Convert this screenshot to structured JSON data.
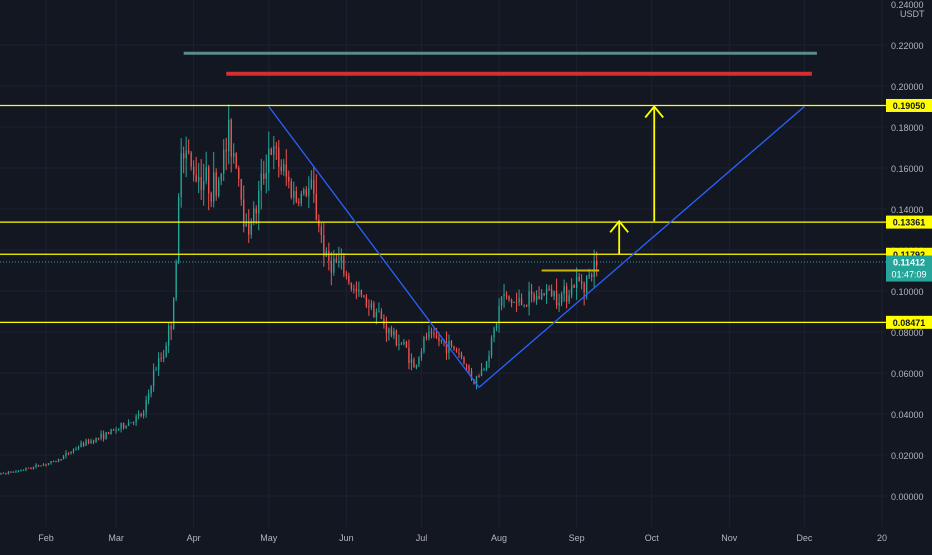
{
  "colors": {
    "background": "#131722",
    "grid": "#1e2230",
    "up": "#26a69a",
    "down": "#ef5350",
    "level": "#ffff00",
    "trendline": "#2962ff",
    "axis_text": "#b2b5be",
    "current_price_badge": "#26a69a",
    "level_badge": "#ffff00",
    "top_line": "#5d8a8a",
    "resistance_line": "#d32f2f",
    "consolidation_line": "#c8b400"
  },
  "chart_data": {
    "type": "candlestick",
    "title": "",
    "currency_label": "USDT",
    "y_axis": {
      "min": 0,
      "max": 0.24,
      "ticks": [
        "0.00000",
        "0.02000",
        "0.04000",
        "0.06000",
        "0.08000",
        "0.10000",
        "0.12000",
        "0.14000",
        "0.16000",
        "0.18000",
        "0.20000",
        "0.22000"
      ],
      "tick_values": [
        0,
        0.02,
        0.04,
        0.06,
        0.08,
        0.1,
        0.12,
        0.14,
        0.16,
        0.18,
        0.2,
        0.22
      ],
      "top_partial_label": "0.24000"
    },
    "x_axis": {
      "labels": [
        "Feb",
        "Mar",
        "Apr",
        "May",
        "Jun",
        "Jul",
        "Aug",
        "Sep",
        "Oct",
        "Nov",
        "Dec",
        "20"
      ],
      "label_dates": [
        "2023-02-01",
        "2023-03-01",
        "2023-04-01",
        "2023-05-01",
        "2023-06-01",
        "2023-07-01",
        "2023-08-01",
        "2023-09-01",
        "2023-10-01",
        "2023-11-01",
        "2023-12-01",
        "2024-01-01"
      ],
      "start_date": "2023-01-04",
      "end_date": "2024-01-01"
    },
    "horizontal_levels": [
      {
        "value": 0.1905,
        "label": "0.19050"
      },
      {
        "value": 0.13361,
        "label": "0.13361"
      },
      {
        "value": 0.11792,
        "label": "0.11792"
      },
      {
        "value": 0.08471,
        "label": "0.08471"
      }
    ],
    "current_price": {
      "value": 0.11412,
      "label": "0.11412",
      "countdown": "01:47:09"
    },
    "segments": [
      {
        "name": "top-line",
        "from": [
          "2023-03-28",
          0.216
        ],
        "to": [
          "2023-12-06",
          0.216
        ]
      },
      {
        "name": "resistance-line",
        "from": [
          "2023-04-14",
          0.206
        ],
        "to": [
          "2023-12-04",
          0.206
        ]
      },
      {
        "name": "descending-trendline",
        "from": [
          "2023-05-01",
          0.19
        ],
        "to": [
          "2023-07-24",
          0.053
        ]
      },
      {
        "name": "ascending-trendline",
        "from": [
          "2023-07-24",
          0.053
        ],
        "to": [
          "2023-12-01",
          0.19
        ]
      },
      {
        "name": "consolidation-line",
        "from": [
          "2023-08-18",
          0.11
        ],
        "to": [
          "2023-09-10",
          0.11
        ]
      }
    ],
    "arrows": [
      {
        "name": "small-target-arrow",
        "x": "2023-09-18",
        "from": 0.118,
        "to": 0.134
      },
      {
        "name": "big-target-arrow",
        "x": "2023-10-02",
        "from": 0.134,
        "to": 0.19
      }
    ],
    "price_path": [
      [
        "2023-01-04",
        0.009
      ],
      [
        "2023-01-20",
        0.012
      ],
      [
        "2023-02-05",
        0.017
      ],
      [
        "2023-02-15",
        0.025
      ],
      [
        "2023-02-25",
        0.03
      ],
      [
        "2023-03-05",
        0.035
      ],
      [
        "2023-03-12",
        0.04
      ],
      [
        "2023-03-16",
        0.06
      ],
      [
        "2023-03-20",
        0.07
      ],
      [
        "2023-03-23",
        0.085
      ],
      [
        "2023-03-25",
        0.11
      ],
      [
        "2023-03-27",
        0.175
      ],
      [
        "2023-03-31",
        0.16
      ],
      [
        "2023-04-05",
        0.155
      ],
      [
        "2023-04-10",
        0.15
      ],
      [
        "2023-04-15",
        0.175
      ],
      [
        "2023-04-18",
        0.165
      ],
      [
        "2023-04-22",
        0.13
      ],
      [
        "2023-04-26",
        0.14
      ],
      [
        "2023-05-01",
        0.17
      ],
      [
        "2023-05-06",
        0.16
      ],
      [
        "2023-05-12",
        0.145
      ],
      [
        "2023-05-18",
        0.15
      ],
      [
        "2023-05-24",
        0.115
      ],
      [
        "2023-05-30",
        0.112
      ],
      [
        "2023-06-04",
        0.1
      ],
      [
        "2023-06-12",
        0.092
      ],
      [
        "2023-06-18",
        0.08
      ],
      [
        "2023-06-25",
        0.072
      ],
      [
        "2023-06-28",
        0.062
      ],
      [
        "2023-07-03",
        0.078
      ],
      [
        "2023-07-10",
        0.075
      ],
      [
        "2023-07-16",
        0.07
      ],
      [
        "2023-07-22",
        0.056
      ],
      [
        "2023-07-26",
        0.063
      ],
      [
        "2023-07-30",
        0.08
      ],
      [
        "2023-08-02",
        0.097
      ],
      [
        "2023-08-08",
        0.094
      ],
      [
        "2023-08-15",
        0.096
      ],
      [
        "2023-08-20",
        0.1
      ],
      [
        "2023-08-26",
        0.098
      ],
      [
        "2023-09-01",
        0.104
      ],
      [
        "2023-09-06",
        0.106
      ],
      [
        "2023-09-09",
        0.114
      ]
    ]
  }
}
